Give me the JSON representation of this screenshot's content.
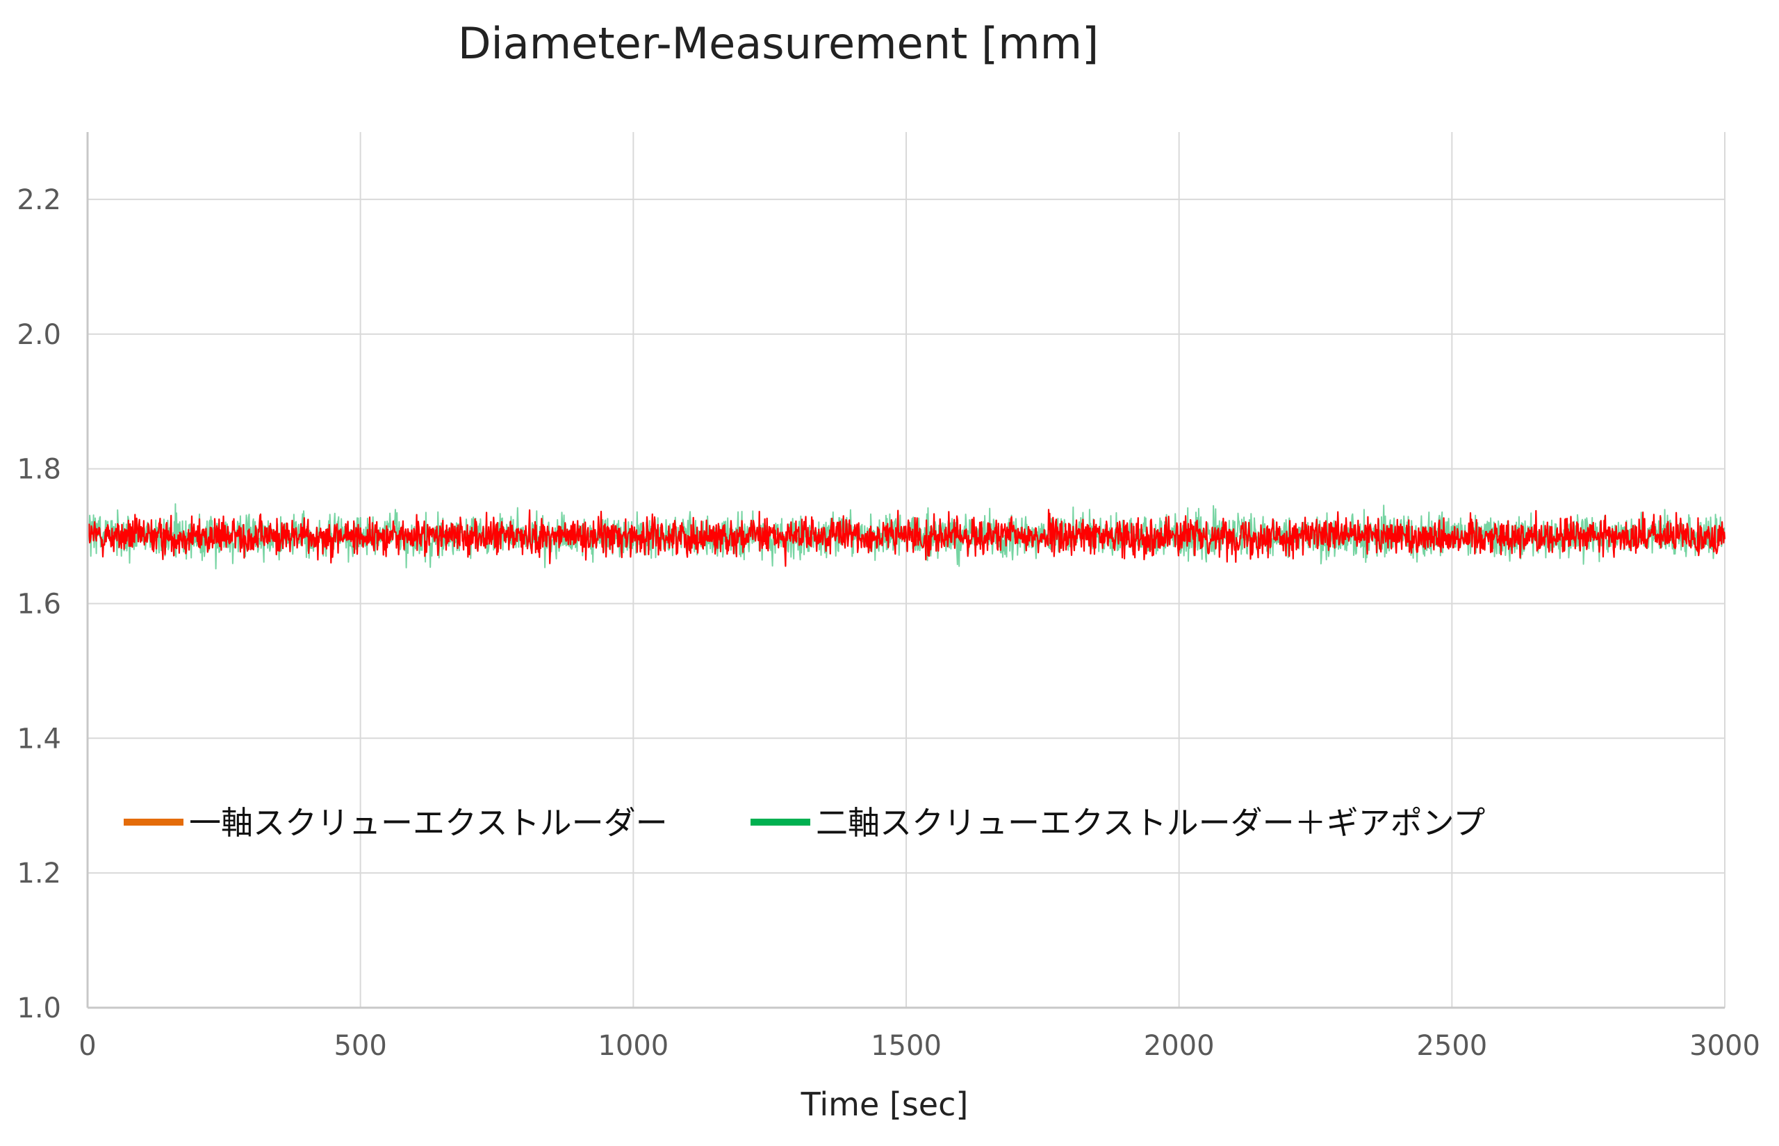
{
  "chart_data": {
    "type": "line",
    "title": "Diameter-Measurement [mm]",
    "xlabel": "Time [sec]",
    "ylabel": "",
    "xlim": [
      0,
      3000
    ],
    "ylim": [
      1.0,
      2.3
    ],
    "x_ticks": [
      "0",
      "500",
      "1000",
      "1500",
      "2000",
      "2500",
      "3000"
    ],
    "y_ticks": [
      "1.0",
      "1.2",
      "1.4",
      "1.6",
      "1.8",
      "2.0",
      "2.2"
    ],
    "grid": true,
    "legend_placement": "lower-left",
    "legend_colors": [
      "#e46c0a",
      "#00b050"
    ],
    "series_colors": [
      "#ff0000",
      "#3cc27a"
    ],
    "series": [
      {
        "name": "一軸スクリューエクストルーダー",
        "x": [
          0,
          100,
          200,
          300,
          400,
          500,
          600,
          700,
          800,
          900,
          1000,
          1100,
          1200,
          1300,
          1400,
          1500,
          1600,
          1700,
          1800,
          1900,
          2000,
          2100,
          2200,
          2300,
          2400,
          2500,
          2600,
          2700,
          2800,
          2900,
          3000
        ],
        "values": [
          1.7,
          1.7,
          1.7,
          1.7,
          1.7,
          1.7,
          1.7,
          1.7,
          1.7,
          1.7,
          1.7,
          1.7,
          1.7,
          1.7,
          1.7,
          1.7,
          1.7,
          1.7,
          1.7,
          1.7,
          1.7,
          1.7,
          1.7,
          1.7,
          1.7,
          1.7,
          1.7,
          1.7,
          1.7,
          1.7,
          1.7
        ],
        "min": 1.63,
        "max": 1.77
      },
      {
        "name": "二軸スクリューエクストルーダー＋ギアポンプ",
        "x": [
          0,
          100,
          200,
          300,
          400,
          500,
          600,
          700,
          800,
          900,
          1000,
          1100,
          1200,
          1300,
          1400,
          1500,
          1600,
          1700,
          1800,
          1900,
          2000,
          2100,
          2200,
          2300,
          2400,
          2500,
          2600,
          2700,
          2800,
          2900,
          3000
        ],
        "values": [
          1.7,
          1.7,
          1.7,
          1.7,
          1.7,
          1.7,
          1.7,
          1.7,
          1.7,
          1.7,
          1.7,
          1.7,
          1.7,
          1.7,
          1.7,
          1.7,
          1.7,
          1.7,
          1.7,
          1.7,
          1.7,
          1.7,
          1.7,
          1.7,
          1.7,
          1.7,
          1.7,
          1.7,
          1.7,
          1.7,
          1.7
        ],
        "min": 1.65,
        "max": 1.8
      }
    ]
  }
}
